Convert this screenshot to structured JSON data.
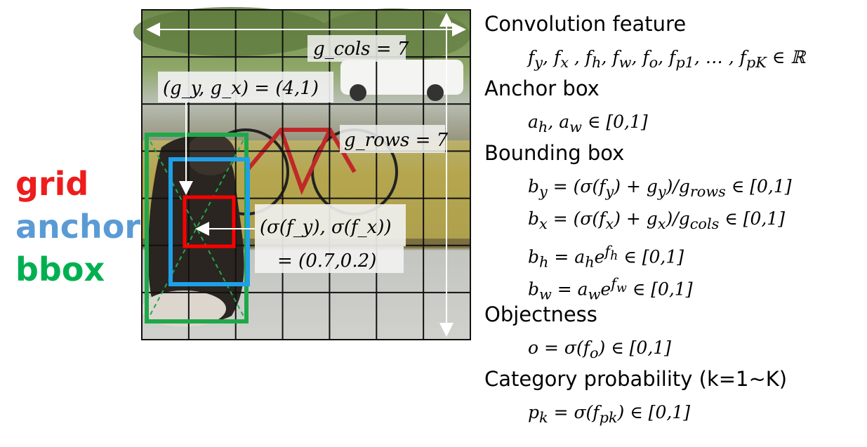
{
  "legend": {
    "grid": {
      "label": "grid",
      "color": "#ee1c1c"
    },
    "anchor": {
      "label": "anchor",
      "color": "#5b9bd5"
    },
    "bbox": {
      "label": "bbox",
      "color": "#00b050"
    }
  },
  "image": {
    "description_icon": "photo-dog-bicycle",
    "grid_lines": 7,
    "cols_label": "g_cols = 7",
    "rows_label": "g_rows = 7",
    "cell_label": "(g_y, g_x) = (4,1)",
    "offset_label": "(σ(f_y), σ(f_x))",
    "offset_value": "= (0.7,0.2)",
    "colors": {
      "grid_box": "#ff0000",
      "anchor_box": "#1ea0e8",
      "bbox_box": "#1fa84a",
      "grid_lines": "#111111",
      "arrows": "#ffffff"
    }
  },
  "sections": [
    {
      "heading": "Convolution feature",
      "formulas": [
        "fᵧ, fₓ , fₕ, f_w, fₒ, f_p1, … , f_pK ∈ ℝ"
      ]
    },
    {
      "heading": "Anchor box",
      "formulas": [
        "aₕ, a_w ∈ [0,1]"
      ]
    },
    {
      "heading": "Bounding box",
      "formulas": [
        "b_y = (σ(f_y) + g_y)/g_rows ∈ [0,1]",
        "b_x = (σ(f_x) + g_x)/g_cols ∈ [0,1]",
        "b_h = a_h e^f_h ∈ [0,1]",
        "b_w = a_w e^f_w ∈ [0,1]"
      ]
    },
    {
      "heading": "Objectness",
      "formulas": [
        "o = σ(f_o) ∈ [0,1]"
      ]
    },
    {
      "heading": "Category probability (k=1~K)",
      "formulas": [
        "p_k = σ(f_pk) ∈ [0,1]"
      ]
    }
  ]
}
